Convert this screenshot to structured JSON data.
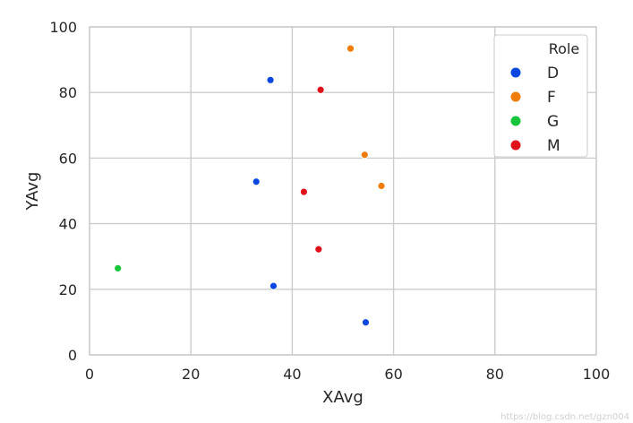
{
  "chart_data": {
    "type": "scatter",
    "xlabel": "XAvg",
    "ylabel": "YAvg",
    "xlim": [
      0,
      100
    ],
    "ylim": [
      0,
      100
    ],
    "x_ticks": [
      "0",
      "20",
      "40",
      "60",
      "80",
      "100"
    ],
    "y_ticks": [
      "0",
      "20",
      "40",
      "60",
      "80",
      "100"
    ],
    "grid": true,
    "legend": {
      "title": "Role",
      "placement": "top-right",
      "entries": [
        "D",
        "F",
        "G",
        "M"
      ]
    },
    "series": [
      {
        "name": "D",
        "color": "#0a47e0",
        "points": [
          {
            "x": 35.7,
            "y": 83.8
          },
          {
            "x": 32.9,
            "y": 52.8
          },
          {
            "x": 36.3,
            "y": 21.0
          },
          {
            "x": 54.5,
            "y": 9.9
          }
        ]
      },
      {
        "name": "F",
        "color": "#f07d0a",
        "points": [
          {
            "x": 51.5,
            "y": 93.4
          },
          {
            "x": 54.3,
            "y": 61.0
          },
          {
            "x": 57.6,
            "y": 51.5
          }
        ]
      },
      {
        "name": "G",
        "color": "#17c53a",
        "points": [
          {
            "x": 5.6,
            "y": 26.4
          }
        ]
      },
      {
        "name": "M",
        "color": "#e0111b",
        "points": [
          {
            "x": 45.6,
            "y": 80.8
          },
          {
            "x": 42.3,
            "y": 49.7
          },
          {
            "x": 45.2,
            "y": 32.2
          }
        ]
      }
    ]
  },
  "watermark": "https://blog.csdn.net/gzn004"
}
